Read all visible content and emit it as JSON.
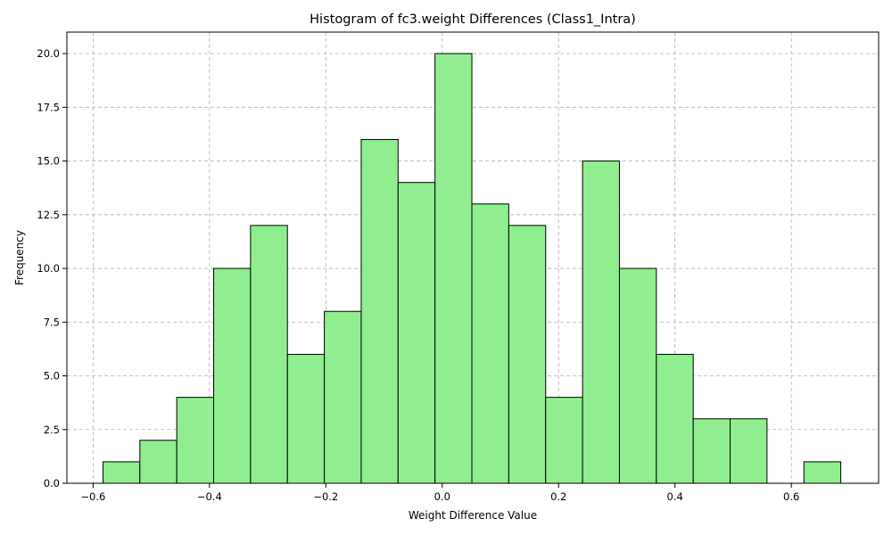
{
  "chart_data": {
    "type": "bar",
    "title": "Histogram of fc3.weight Differences (Class1_Intra)",
    "xlabel": "Weight Difference Value",
    "ylabel": "Frequency",
    "xlim": [
      -0.645,
      0.75
    ],
    "ylim": [
      0,
      21
    ],
    "grid": true,
    "bar_color": "#90ee90",
    "edge_color": "#000000",
    "bin_start": -0.583,
    "bin_width": 0.0634,
    "counts": [
      1,
      2,
      4,
      10,
      12,
      6,
      8,
      16,
      14,
      20,
      13,
      12,
      4,
      15,
      10,
      6,
      3,
      3,
      0,
      1
    ],
    "x_ticks": [
      -0.6,
      -0.4,
      -0.2,
      0.0,
      0.2,
      0.4,
      0.6
    ],
    "x_tick_labels": [
      "−0.6",
      "−0.4",
      "−0.2",
      "0.0",
      "0.2",
      "0.4",
      "0.6"
    ],
    "y_ticks": [
      0,
      2.5,
      5,
      7.5,
      10,
      12.5,
      15,
      17.5,
      20
    ],
    "y_tick_labels": [
      "0.0",
      "2.5",
      "5.0",
      "7.5",
      "10.0",
      "12.5",
      "15.0",
      "17.5",
      "20.0"
    ]
  }
}
